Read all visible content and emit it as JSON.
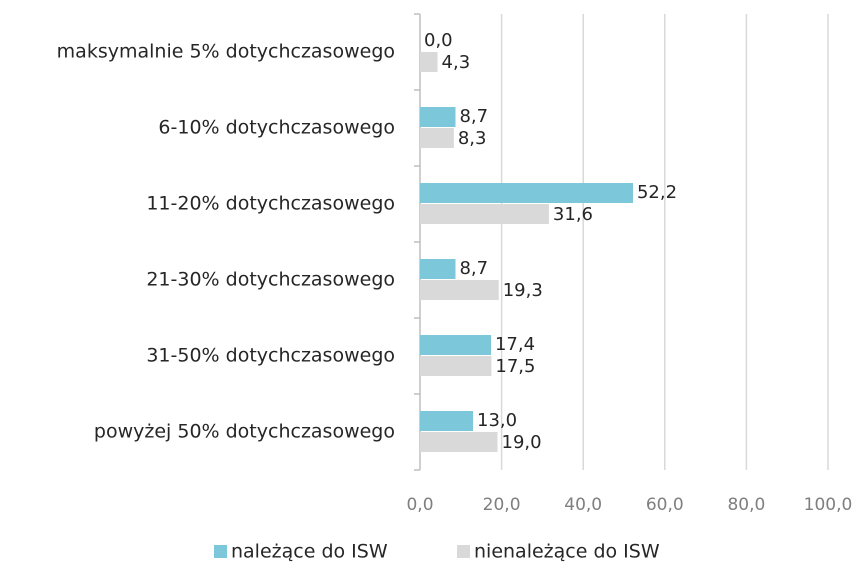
{
  "chart_data": {
    "type": "hbar",
    "categories": [
      "maksymalnie 5% dotychczasowego",
      "6-10% dotychczasowego",
      "11-20% dotychczasowego",
      "21-30% dotychczasowego",
      "31-50% dotychczasowego",
      "powyżej 50% dotychczasowego"
    ],
    "series": [
      {
        "name": "należące do ISW",
        "color": "#7cc7d9",
        "values": [
          0.0,
          8.7,
          52.2,
          8.7,
          17.4,
          13.0
        ],
        "value_labels": [
          "0,0",
          "8,7",
          "52,2",
          "8,7",
          "17,4",
          "13,0"
        ]
      },
      {
        "name": "nienależące do ISW",
        "color": "#d9d9d9",
        "values": [
          4.3,
          8.3,
          31.6,
          19.3,
          17.5,
          19.0
        ],
        "value_labels": [
          "4,3",
          "8,3",
          "31,6",
          "19,3",
          "17,5",
          "19,0"
        ]
      }
    ],
    "xlim": [
      0,
      100
    ],
    "xticks": [
      {
        "value": 0,
        "label": "0,0"
      },
      {
        "value": 20,
        "label": "20,0"
      },
      {
        "value": 40,
        "label": "40,0"
      },
      {
        "value": 60,
        "label": "60,0"
      },
      {
        "value": 80,
        "label": "80,0"
      },
      {
        "value": 100,
        "label": "100,0"
      }
    ],
    "grid": true,
    "legend": "bottom"
  }
}
